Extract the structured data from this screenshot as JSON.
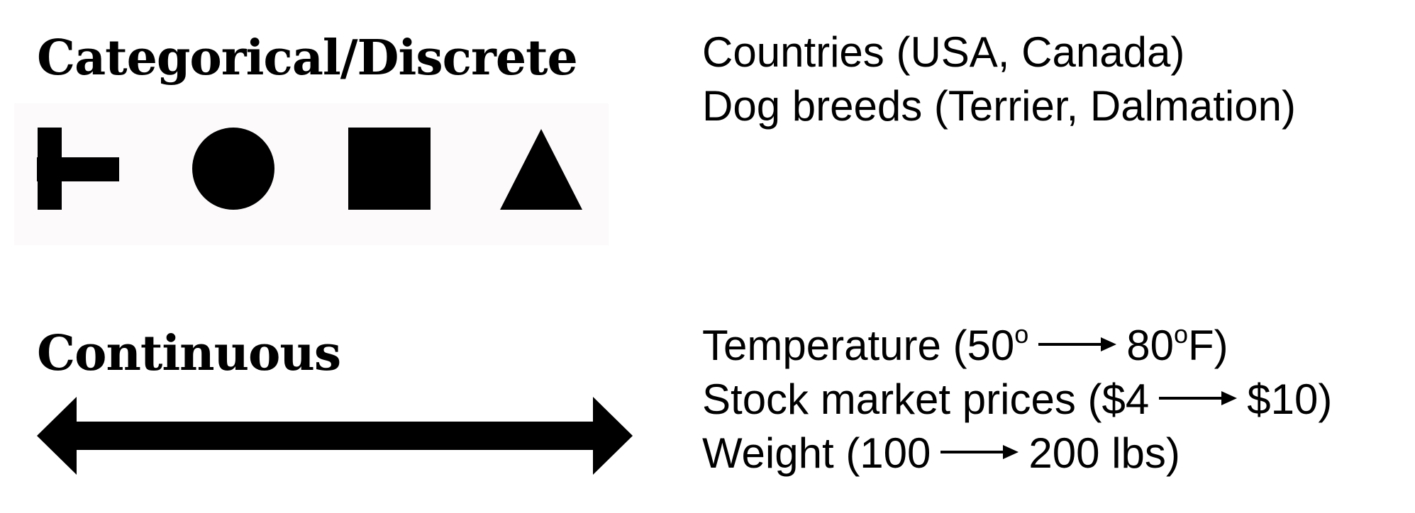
{
  "categorical": {
    "heading": "Categorical/Discrete",
    "symbols": [
      "plus-symbol",
      "circle-symbol",
      "square-symbol",
      "triangle-symbol"
    ],
    "examples": [
      "Countries (USA, Canada)",
      "Dog breeds (Terrier, Dalmation)"
    ]
  },
  "continuous": {
    "heading": "Continuous",
    "symbol": "double-arrow-icon",
    "examples": {
      "temperature": {
        "label": "Temperature (50",
        "deg1": "o",
        "to": "80",
        "deg2": "o",
        "end": "F)"
      },
      "stock": {
        "label": "Stock market prices ($4",
        "to": "$10)"
      },
      "weight": {
        "label": "Weight (100",
        "to": "200 lbs)"
      }
    }
  },
  "colors": {
    "ink": "#000000",
    "background": "#ffffff",
    "panel": "#fcfafb"
  }
}
